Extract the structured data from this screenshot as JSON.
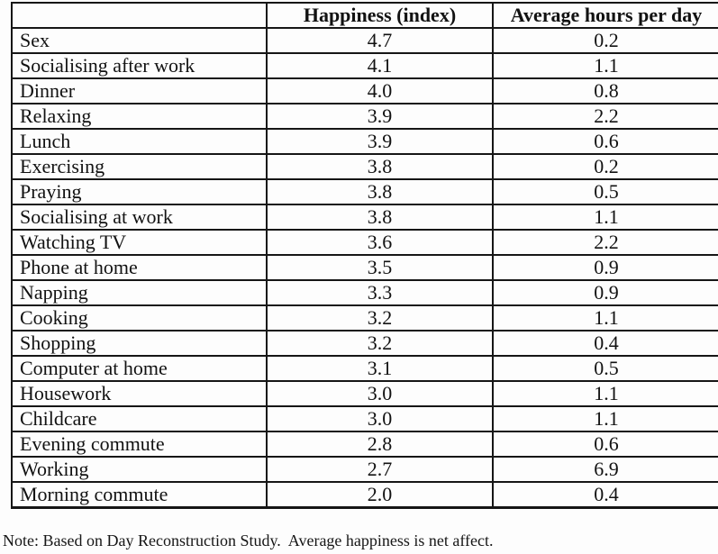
{
  "table": {
    "corner_label": "",
    "columns": [
      "Happiness (index)",
      "Average hours per day"
    ],
    "rows": [
      {
        "activity": "Sex",
        "happiness": "4.7",
        "hours": "0.2"
      },
      {
        "activity": "Socialising after work",
        "happiness": "4.1",
        "hours": "1.1"
      },
      {
        "activity": "Dinner",
        "happiness": "4.0",
        "hours": "0.8"
      },
      {
        "activity": "Relaxing",
        "happiness": "3.9",
        "hours": "2.2"
      },
      {
        "activity": "Lunch",
        "happiness": "3.9",
        "hours": "0.6"
      },
      {
        "activity": "Exercising",
        "happiness": "3.8",
        "hours": "0.2"
      },
      {
        "activity": "Praying",
        "happiness": "3.8",
        "hours": "0.5"
      },
      {
        "activity": "Socialising at work",
        "happiness": "3.8",
        "hours": "1.1"
      },
      {
        "activity": "Watching TV",
        "happiness": "3.6",
        "hours": "2.2"
      },
      {
        "activity": "Phone at home",
        "happiness": "3.5",
        "hours": "0.9"
      },
      {
        "activity": "Napping",
        "happiness": "3.3",
        "hours": "0.9"
      },
      {
        "activity": "Cooking",
        "happiness": "3.2",
        "hours": "1.1"
      },
      {
        "activity": "Shopping",
        "happiness": "3.2",
        "hours": "0.4"
      },
      {
        "activity": "Computer at home",
        "happiness": "3.1",
        "hours": "0.5"
      },
      {
        "activity": "Housework",
        "happiness": "3.0",
        "hours": "1.1"
      },
      {
        "activity": "Childcare",
        "happiness": "3.0",
        "hours": "1.1"
      },
      {
        "activity": "Evening commute",
        "happiness": "2.8",
        "hours": "0.6"
      },
      {
        "activity": "Working",
        "happiness": "2.7",
        "hours": "6.9"
      },
      {
        "activity": "Morning commute",
        "happiness": "2.0",
        "hours": "0.4"
      }
    ]
  },
  "document": {
    "note": "Note: Based on Day Reconstruction Study.  Average happiness is net affect."
  }
}
